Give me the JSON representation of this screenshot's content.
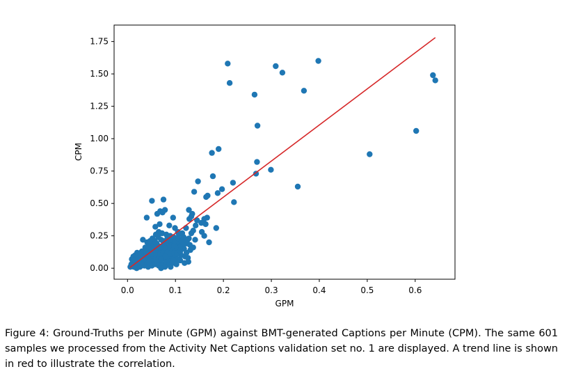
{
  "caption": "Figure 4: Ground-Truths per Minute (GPM) against BMT-generated Captions per Minute (CPM). The same 601 samples we processed from the Activity Net Captions validation set no. 1 are displayed. A trend line is shown in red to illustrate the correlation.",
  "chart_data": {
    "type": "scatter",
    "xlabel": "GPM",
    "ylabel": "CPM",
    "xlim": [
      -0.028,
      0.683
    ],
    "ylim": [
      -0.085,
      1.877
    ],
    "xticks": [
      "0.0",
      "0.1",
      "0.2",
      "0.3",
      "0.4",
      "0.5",
      "0.6"
    ],
    "yticks": [
      "0.00",
      "0.25",
      "0.50",
      "0.75",
      "1.00",
      "1.25",
      "1.50",
      "1.75"
    ],
    "grid": false,
    "colors": {
      "points": "#1f77b4",
      "trend": "#d62728"
    },
    "trend_line": {
      "x": [
        0.005,
        0.642
      ],
      "y": [
        0.005,
        1.78
      ]
    },
    "points": [
      [
        0.209,
        1.58
      ],
      [
        0.398,
        1.6
      ],
      [
        0.309,
        1.56
      ],
      [
        0.323,
        1.51
      ],
      [
        0.213,
        1.43
      ],
      [
        0.637,
        1.49
      ],
      [
        0.642,
        1.45
      ],
      [
        0.368,
        1.37
      ],
      [
        0.265,
        1.34
      ],
      [
        0.271,
        1.1
      ],
      [
        0.602,
        1.06
      ],
      [
        0.19,
        0.92
      ],
      [
        0.176,
        0.89
      ],
      [
        0.505,
        0.88
      ],
      [
        0.27,
        0.82
      ],
      [
        0.299,
        0.76
      ],
      [
        0.268,
        0.73
      ],
      [
        0.178,
        0.71
      ],
      [
        0.355,
        0.63
      ],
      [
        0.147,
        0.67
      ],
      [
        0.22,
        0.66
      ],
      [
        0.197,
        0.61
      ],
      [
        0.139,
        0.59
      ],
      [
        0.188,
        0.58
      ],
      [
        0.164,
        0.55
      ],
      [
        0.167,
        0.56
      ],
      [
        0.051,
        0.52
      ],
      [
        0.075,
        0.53
      ],
      [
        0.222,
        0.51
      ],
      [
        0.078,
        0.45
      ],
      [
        0.068,
        0.44
      ],
      [
        0.073,
        0.43
      ],
      [
        0.062,
        0.42
      ],
      [
        0.128,
        0.45
      ],
      [
        0.135,
        0.42
      ],
      [
        0.095,
        0.39
      ],
      [
        0.04,
        0.39
      ],
      [
        0.133,
        0.4
      ],
      [
        0.129,
        0.38
      ],
      [
        0.16,
        0.38
      ],
      [
        0.166,
        0.39
      ],
      [
        0.145,
        0.37
      ],
      [
        0.142,
        0.33
      ],
      [
        0.154,
        0.35
      ],
      [
        0.163,
        0.34
      ],
      [
        0.185,
        0.31
      ],
      [
        0.058,
        0.32
      ],
      [
        0.067,
        0.34
      ],
      [
        0.087,
        0.33
      ],
      [
        0.099,
        0.31
      ],
      [
        0.105,
        0.28
      ],
      [
        0.114,
        0.27
      ],
      [
        0.155,
        0.28
      ],
      [
        0.16,
        0.25
      ],
      [
        0.133,
        0.27
      ],
      [
        0.122,
        0.31
      ],
      [
        0.137,
        0.29
      ],
      [
        0.065,
        0.28
      ],
      [
        0.072,
        0.27
      ],
      [
        0.081,
        0.26
      ],
      [
        0.089,
        0.25
      ],
      [
        0.096,
        0.24
      ],
      [
        0.107,
        0.26
      ],
      [
        0.117,
        0.24
      ],
      [
        0.128,
        0.23
      ],
      [
        0.141,
        0.22
      ],
      [
        0.17,
        0.2
      ],
      [
        0.083,
        0.23
      ],
      [
        0.07,
        0.22
      ],
      [
        0.032,
        0.22
      ],
      [
        0.041,
        0.2
      ],
      [
        0.046,
        0.19
      ],
      [
        0.052,
        0.18
      ],
      [
        0.057,
        0.21
      ],
      [
        0.061,
        0.19
      ],
      [
        0.066,
        0.17
      ],
      [
        0.076,
        0.18
      ],
      [
        0.084,
        0.2
      ],
      [
        0.092,
        0.19
      ],
      [
        0.101,
        0.18
      ],
      [
        0.108,
        0.2
      ],
      [
        0.114,
        0.17
      ],
      [
        0.122,
        0.19
      ],
      [
        0.13,
        0.18
      ],
      [
        0.118,
        0.15
      ],
      [
        0.104,
        0.14
      ],
      [
        0.095,
        0.13
      ],
      [
        0.088,
        0.15
      ],
      [
        0.079,
        0.14
      ],
      [
        0.071,
        0.13
      ],
      [
        0.063,
        0.14
      ],
      [
        0.054,
        0.13
      ],
      [
        0.048,
        0.15
      ],
      [
        0.042,
        0.14
      ],
      [
        0.036,
        0.12
      ],
      [
        0.03,
        0.13
      ],
      [
        0.025,
        0.11
      ],
      [
        0.02,
        0.12
      ],
      [
        0.016,
        0.1
      ],
      [
        0.012,
        0.09
      ],
      [
        0.009,
        0.07
      ],
      [
        0.018,
        0.07
      ],
      [
        0.024,
        0.08
      ],
      [
        0.029,
        0.06
      ],
      [
        0.034,
        0.09
      ],
      [
        0.039,
        0.1
      ],
      [
        0.044,
        0.08
      ],
      [
        0.05,
        0.09
      ],
      [
        0.055,
        0.07
      ],
      [
        0.06,
        0.1
      ],
      [
        0.066,
        0.08
      ],
      [
        0.072,
        0.09
      ],
      [
        0.078,
        0.07
      ],
      [
        0.085,
        0.1
      ],
      [
        0.091,
        0.08
      ],
      [
        0.098,
        0.09
      ],
      [
        0.105,
        0.07
      ],
      [
        0.112,
        0.1
      ],
      [
        0.12,
        0.09
      ],
      [
        0.126,
        0.08
      ],
      [
        0.082,
        0.06
      ],
      [
        0.089,
        0.05
      ],
      [
        0.096,
        0.06
      ],
      [
        0.11,
        0.06
      ],
      [
        0.068,
        0.05
      ],
      [
        0.061,
        0.04
      ],
      [
        0.053,
        0.05
      ],
      [
        0.047,
        0.04
      ],
      [
        0.04,
        0.03
      ],
      [
        0.033,
        0.04
      ],
      [
        0.027,
        0.03
      ],
      [
        0.021,
        0.02
      ],
      [
        0.015,
        0.03
      ],
      [
        0.01,
        0.02
      ],
      [
        0.006,
        0.01
      ],
      [
        0.013,
        0.01
      ],
      [
        0.019,
        0.0
      ],
      [
        0.026,
        0.01
      ],
      [
        0.035,
        0.02
      ],
      [
        0.043,
        0.01
      ],
      [
        0.051,
        0.02
      ],
      [
        0.058,
        0.03
      ],
      [
        0.065,
        0.02
      ],
      [
        0.073,
        0.03
      ],
      [
        0.08,
        0.04
      ],
      [
        0.087,
        0.03
      ],
      [
        0.094,
        0.04
      ],
      [
        0.102,
        0.03
      ],
      [
        0.06,
        0.06
      ],
      [
        0.045,
        0.06
      ],
      [
        0.038,
        0.05
      ],
      [
        0.03,
        0.05
      ],
      [
        0.023,
        0.05
      ],
      [
        0.017,
        0.04
      ],
      [
        0.011,
        0.05
      ],
      [
        0.008,
        0.03
      ],
      [
        0.014,
        0.06
      ],
      [
        0.022,
        0.08
      ],
      [
        0.028,
        0.1
      ],
      [
        0.037,
        0.16
      ],
      [
        0.045,
        0.11
      ],
      [
        0.053,
        0.11
      ],
      [
        0.059,
        0.12
      ],
      [
        0.068,
        0.11
      ],
      [
        0.075,
        0.12
      ],
      [
        0.083,
        0.12
      ],
      [
        0.09,
        0.11
      ],
      [
        0.097,
        0.12
      ],
      [
        0.103,
        0.11
      ],
      [
        0.11,
        0.13
      ],
      [
        0.123,
        0.12
      ],
      [
        0.131,
        0.14
      ],
      [
        0.137,
        0.16
      ],
      [
        0.109,
        0.16
      ],
      [
        0.1,
        0.16
      ],
      [
        0.093,
        0.17
      ],
      [
        0.086,
        0.17
      ],
      [
        0.077,
        0.16
      ],
      [
        0.069,
        0.16
      ],
      [
        0.062,
        0.16
      ],
      [
        0.056,
        0.16
      ],
      [
        0.049,
        0.17
      ],
      [
        0.043,
        0.17
      ],
      [
        0.064,
        0.24
      ],
      [
        0.059,
        0.26
      ],
      [
        0.074,
        0.21
      ],
      [
        0.091,
        0.22
      ],
      [
        0.099,
        0.21
      ],
      [
        0.106,
        0.23
      ],
      [
        0.113,
        0.21
      ],
      [
        0.124,
        0.21
      ],
      [
        0.079,
        0.09
      ],
      [
        0.07,
        0.07
      ],
      [
        0.044,
        0.05
      ],
      [
        0.035,
        0.07
      ],
      [
        0.039,
        0.13
      ],
      [
        0.047,
        0.21
      ],
      [
        0.052,
        0.23
      ],
      [
        0.119,
        0.04
      ],
      [
        0.127,
        0.05
      ],
      [
        0.09,
        0.01
      ],
      [
        0.078,
        0.01
      ],
      [
        0.07,
        0.0
      ]
    ]
  }
}
